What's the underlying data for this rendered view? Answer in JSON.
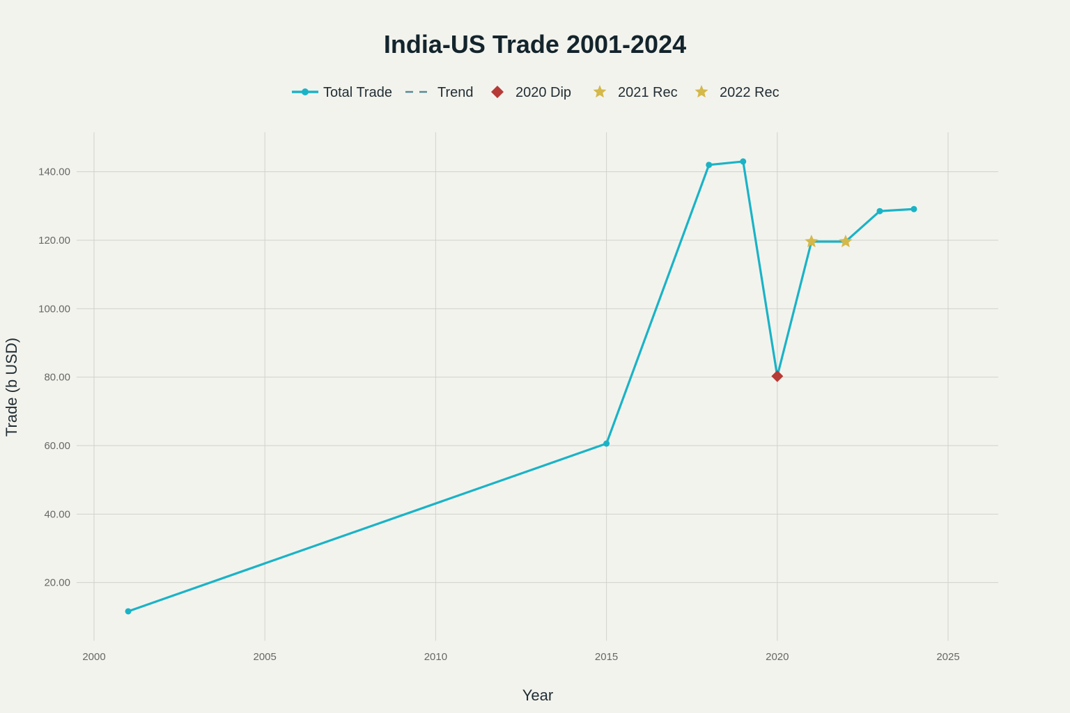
{
  "chart_data": {
    "type": "line",
    "title": "India-US Trade 2001-2024",
    "xlabel": "Year",
    "ylabel": "Trade (b USD)",
    "xlim": [
      1999.5,
      2026.5
    ],
    "ylim": [
      3,
      152
    ],
    "xticks": [
      2000,
      2005,
      2010,
      2015,
      2020,
      2025
    ],
    "yticks": [
      20,
      40,
      60,
      80,
      100,
      120,
      140
    ],
    "ytick_labels": [
      "20.00",
      "40.00",
      "60.00",
      "80.00",
      "100.00",
      "120.00",
      "140.00"
    ],
    "grid": true,
    "legend_position": "top-center",
    "legend": [
      "Total Trade",
      "Trend",
      "2020 Dip",
      "2021 Rec",
      "2022 Rec"
    ],
    "series": [
      {
        "name": "Total Trade",
        "color": "#1ab3c6",
        "x": [
          2001,
          2015,
          2018,
          2019,
          2020,
          2021,
          2022,
          2023,
          2024
        ],
        "y": [
          11.6,
          60.6,
          142.0,
          143.0,
          80.3,
          119.6,
          119.6,
          128.5,
          129.1
        ]
      },
      {
        "name": "Trend",
        "color": "#5a8a94",
        "x": [],
        "y": []
      }
    ],
    "markers": [
      {
        "name": "2020 Dip",
        "x": 2020,
        "y": 80.3,
        "shape": "diamond",
        "color": "#b63a35"
      },
      {
        "name": "2021 Rec",
        "x": 2021,
        "y": 119.6,
        "shape": "star",
        "color": "#d4b84a"
      },
      {
        "name": "2022 Rec",
        "x": 2022,
        "y": 119.6,
        "shape": "star",
        "color": "#d4b84a"
      }
    ]
  }
}
